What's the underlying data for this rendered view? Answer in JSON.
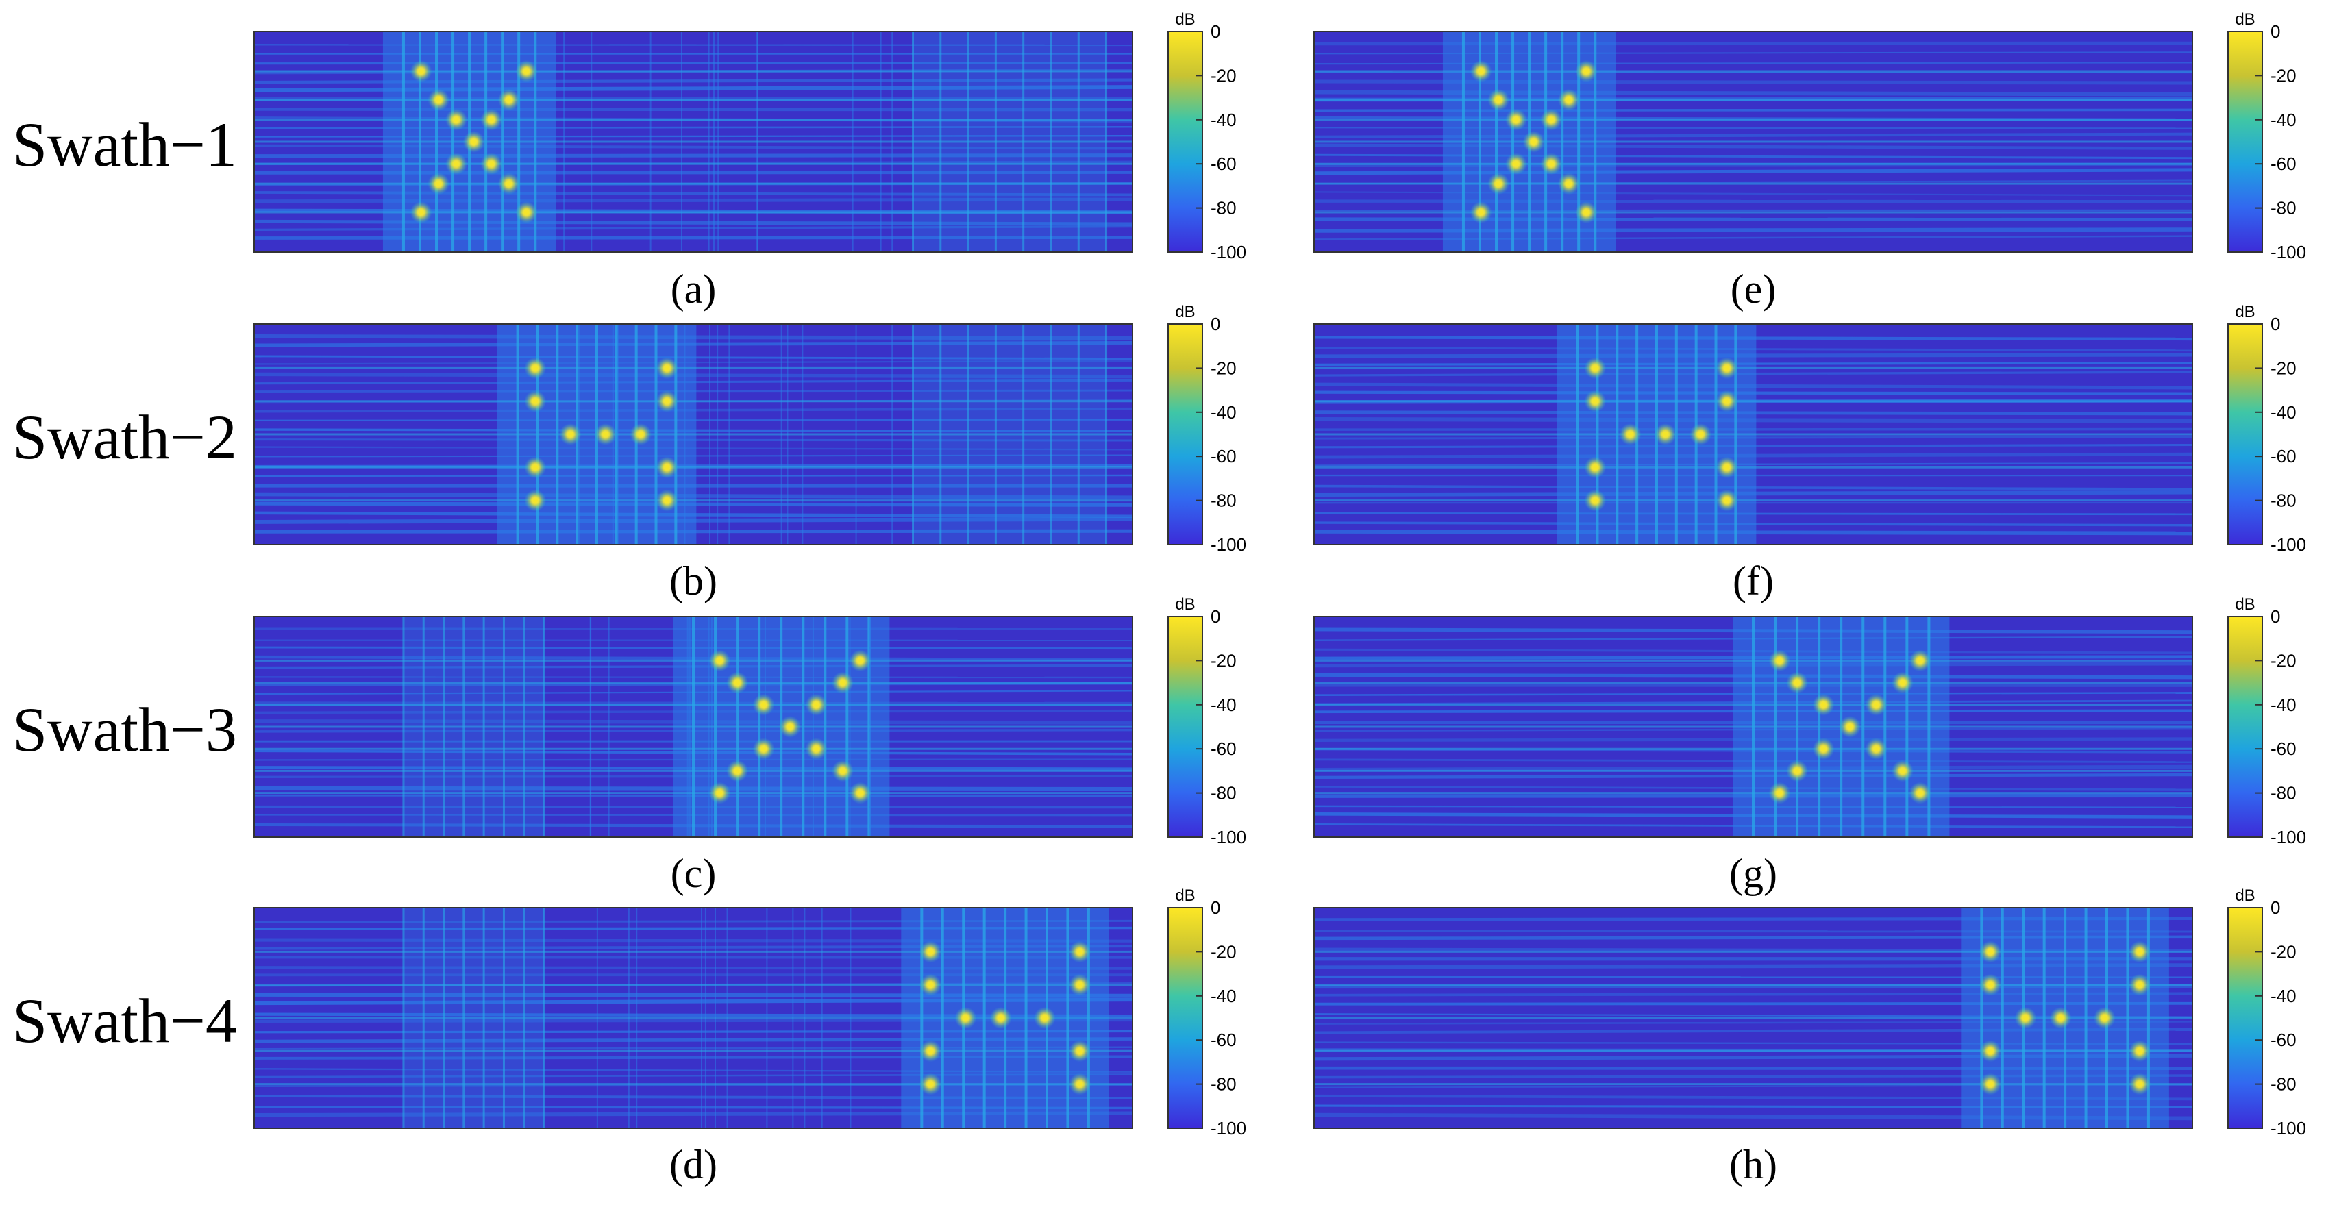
{
  "figure": {
    "row_labels": [
      "Swath−1",
      "Swath−2",
      "Swath−3",
      "Swath−4"
    ],
    "colorbar_unit": "dB",
    "colorbar_ticks": [
      "0",
      "-20",
      "-40",
      "-60",
      "-80",
      "-100"
    ]
  },
  "colors": {
    "background": "#3a31c8",
    "band": "#2b7ee9",
    "line": "#29a9e8",
    "peak": "#f5e52a",
    "colormap": [
      "#fde725",
      "#c8c332",
      "#3fc6a6",
      "#1fa4df",
      "#3267f0",
      "#3c2bd8"
    ]
  },
  "chart_data": [
    {
      "type": "heatmap",
      "panel": "a",
      "row_label": "Swath−1",
      "caption": "(a)",
      "colorbar_label": "dB",
      "clim": [
        -100,
        0
      ],
      "peak_level_dB": 0,
      "floor_level_dB": -100,
      "bright_band": [
        0.17,
        0.32
      ],
      "repeat_band": [
        0.75,
        0.97
      ],
      "x": [
        0,
        1
      ],
      "y": [
        0,
        1
      ],
      "peaks": [
        [
          0.19,
          0.18
        ],
        [
          0.31,
          0.18
        ],
        [
          0.21,
          0.31
        ],
        [
          0.29,
          0.31
        ],
        [
          0.23,
          0.4
        ],
        [
          0.27,
          0.4
        ],
        [
          0.25,
          0.5
        ],
        [
          0.23,
          0.6
        ],
        [
          0.27,
          0.6
        ],
        [
          0.21,
          0.69
        ],
        [
          0.29,
          0.69
        ],
        [
          0.19,
          0.82
        ],
        [
          0.31,
          0.82
        ]
      ]
    },
    {
      "type": "heatmap",
      "panel": "b",
      "row_label": "Swath−2",
      "caption": "(b)",
      "colorbar_label": "dB",
      "clim": [
        -100,
        0
      ],
      "peak_level_dB": 0,
      "floor_level_dB": -100,
      "bright_band": [
        0.3,
        0.48
      ],
      "repeat_band": [
        0.75,
        0.97
      ],
      "x": [
        0,
        1
      ],
      "y": [
        0,
        1
      ],
      "peaks": [
        [
          0.32,
          0.2
        ],
        [
          0.47,
          0.2
        ],
        [
          0.32,
          0.35
        ],
        [
          0.47,
          0.35
        ],
        [
          0.36,
          0.5
        ],
        [
          0.4,
          0.5
        ],
        [
          0.44,
          0.5
        ],
        [
          0.32,
          0.65
        ],
        [
          0.47,
          0.65
        ],
        [
          0.32,
          0.8
        ],
        [
          0.47,
          0.8
        ]
      ]
    },
    {
      "type": "heatmap",
      "panel": "c",
      "row_label": "Swath−3",
      "caption": "(c)",
      "colorbar_label": "dB",
      "clim": [
        -100,
        0
      ],
      "peak_level_dB": 0,
      "floor_level_dB": -100,
      "bright_band": [
        0.5,
        0.7
      ],
      "repeat_band": [
        0.17,
        0.33
      ],
      "x": [
        0,
        1
      ],
      "y": [
        0,
        1
      ],
      "peaks": [
        [
          0.53,
          0.2
        ],
        [
          0.69,
          0.2
        ],
        [
          0.55,
          0.3
        ],
        [
          0.67,
          0.3
        ],
        [
          0.58,
          0.4
        ],
        [
          0.64,
          0.4
        ],
        [
          0.61,
          0.5
        ],
        [
          0.58,
          0.6
        ],
        [
          0.64,
          0.6
        ],
        [
          0.55,
          0.7
        ],
        [
          0.67,
          0.7
        ],
        [
          0.53,
          0.8
        ],
        [
          0.69,
          0.8
        ]
      ]
    },
    {
      "type": "heatmap",
      "panel": "d",
      "row_label": "Swath−4",
      "caption": "(d)",
      "colorbar_label": "dB",
      "clim": [
        -100,
        0
      ],
      "peak_level_dB": 0,
      "floor_level_dB": -100,
      "bright_band": [
        0.76,
        0.95
      ],
      "repeat_band": [
        0.17,
        0.33
      ],
      "x": [
        0,
        1
      ],
      "y": [
        0,
        1
      ],
      "peaks": [
        [
          0.77,
          0.2
        ],
        [
          0.94,
          0.2
        ],
        [
          0.77,
          0.35
        ],
        [
          0.94,
          0.35
        ],
        [
          0.81,
          0.5
        ],
        [
          0.85,
          0.5
        ],
        [
          0.9,
          0.5
        ],
        [
          0.77,
          0.65
        ],
        [
          0.94,
          0.65
        ],
        [
          0.77,
          0.8
        ],
        [
          0.94,
          0.8
        ]
      ]
    },
    {
      "type": "heatmap",
      "panel": "e",
      "row_label": "Swath−1",
      "caption": "(e)",
      "colorbar_label": "dB",
      "clim": [
        -100,
        0
      ],
      "peak_level_dB": 0,
      "floor_level_dB": -100,
      "bright_band": [
        0.17,
        0.32
      ],
      "repeat_band": null,
      "x": [
        0,
        1
      ],
      "y": [
        0,
        1
      ],
      "peaks": [
        [
          0.19,
          0.18
        ],
        [
          0.31,
          0.18
        ],
        [
          0.21,
          0.31
        ],
        [
          0.29,
          0.31
        ],
        [
          0.23,
          0.4
        ],
        [
          0.27,
          0.4
        ],
        [
          0.25,
          0.5
        ],
        [
          0.23,
          0.6
        ],
        [
          0.27,
          0.6
        ],
        [
          0.21,
          0.69
        ],
        [
          0.29,
          0.69
        ],
        [
          0.19,
          0.82
        ],
        [
          0.31,
          0.82
        ]
      ]
    },
    {
      "type": "heatmap",
      "panel": "f",
      "row_label": "Swath−2",
      "caption": "(f)",
      "colorbar_label": "dB",
      "clim": [
        -100,
        0
      ],
      "peak_level_dB": 0,
      "floor_level_dB": -100,
      "bright_band": [
        0.3,
        0.48
      ],
      "repeat_band": null,
      "x": [
        0,
        1
      ],
      "y": [
        0,
        1
      ],
      "peaks": [
        [
          0.32,
          0.2
        ],
        [
          0.47,
          0.2
        ],
        [
          0.32,
          0.35
        ],
        [
          0.47,
          0.35
        ],
        [
          0.36,
          0.5
        ],
        [
          0.4,
          0.5
        ],
        [
          0.44,
          0.5
        ],
        [
          0.32,
          0.65
        ],
        [
          0.47,
          0.65
        ],
        [
          0.32,
          0.8
        ],
        [
          0.47,
          0.8
        ]
      ]
    },
    {
      "type": "heatmap",
      "panel": "g",
      "row_label": "Swath−3",
      "caption": "(g)",
      "colorbar_label": "dB",
      "clim": [
        -100,
        0
      ],
      "peak_level_dB": 0,
      "floor_level_dB": -100,
      "bright_band": [
        0.5,
        0.7
      ],
      "repeat_band": null,
      "x": [
        0,
        1
      ],
      "y": [
        0,
        1
      ],
      "peaks": [
        [
          0.53,
          0.2
        ],
        [
          0.69,
          0.2
        ],
        [
          0.55,
          0.3
        ],
        [
          0.67,
          0.3
        ],
        [
          0.58,
          0.4
        ],
        [
          0.64,
          0.4
        ],
        [
          0.61,
          0.5
        ],
        [
          0.58,
          0.6
        ],
        [
          0.64,
          0.6
        ],
        [
          0.55,
          0.7
        ],
        [
          0.67,
          0.7
        ],
        [
          0.53,
          0.8
        ],
        [
          0.69,
          0.8
        ]
      ]
    },
    {
      "type": "heatmap",
      "panel": "h",
      "row_label": "Swath−4",
      "caption": "(h)",
      "colorbar_label": "dB",
      "clim": [
        -100,
        0
      ],
      "peak_level_dB": 0,
      "floor_level_dB": -100,
      "bright_band": [
        0.76,
        0.95
      ],
      "repeat_band": null,
      "x": [
        0,
        1
      ],
      "y": [
        0,
        1
      ],
      "peaks": [
        [
          0.77,
          0.2
        ],
        [
          0.94,
          0.2
        ],
        [
          0.77,
          0.35
        ],
        [
          0.94,
          0.35
        ],
        [
          0.81,
          0.5
        ],
        [
          0.85,
          0.5
        ],
        [
          0.9,
          0.5
        ],
        [
          0.77,
          0.65
        ],
        [
          0.94,
          0.65
        ],
        [
          0.77,
          0.8
        ],
        [
          0.94,
          0.8
        ]
      ]
    }
  ]
}
